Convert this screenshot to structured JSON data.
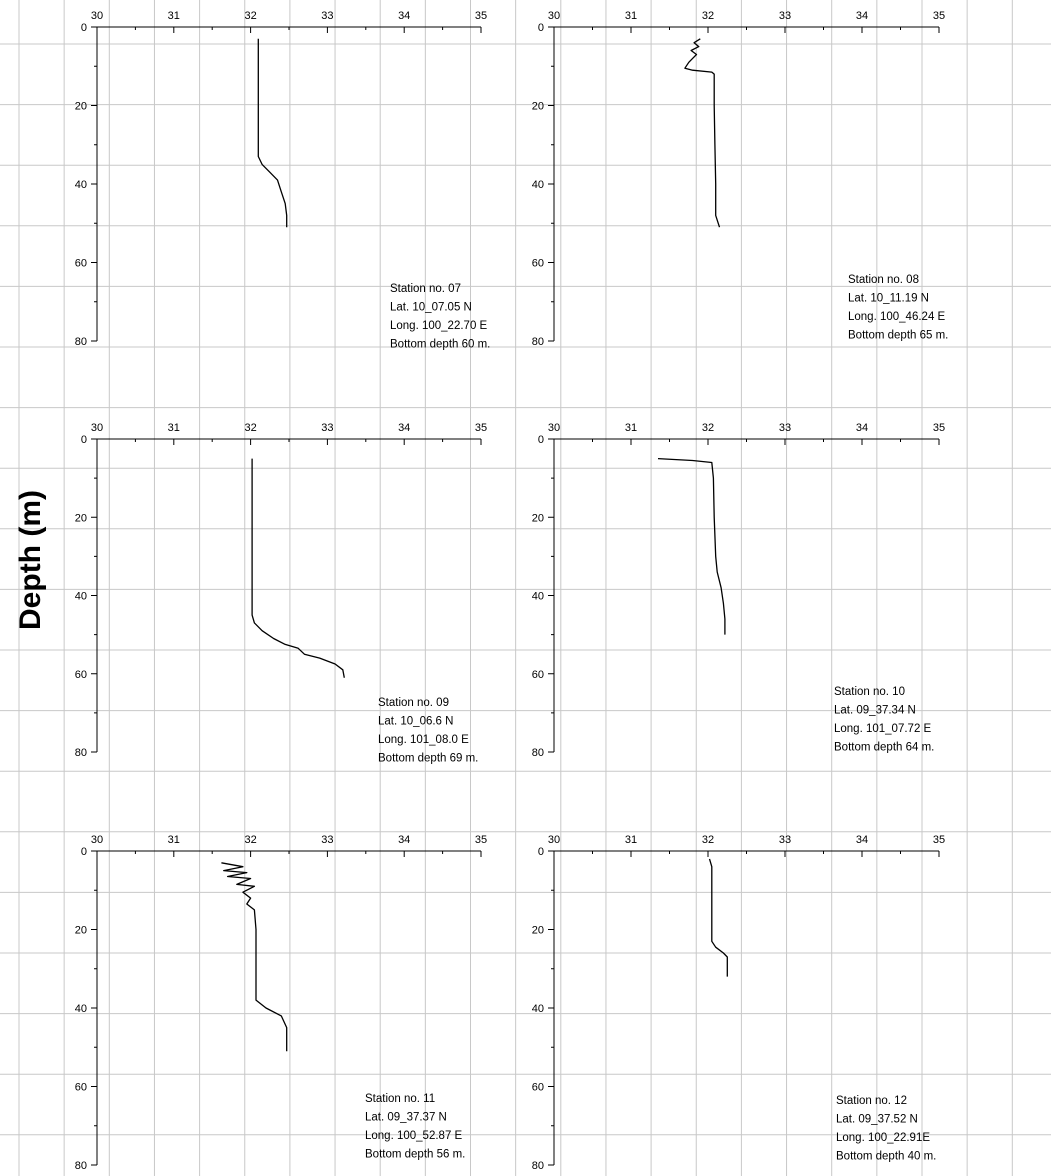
{
  "colors": {
    "background": "#ffffff",
    "grid": "#c8c8c8",
    "axis": "#000000",
    "line": "#000000"
  },
  "chart_data": {
    "type": "line",
    "ylabel": "Depth (m)",
    "grid": true,
    "panels": [
      {
        "station": "Station no. 07",
        "lat": "Lat. 10_07.05 N",
        "long": "Long. 100_22.70 E",
        "bottom": "Bottom depth 60 m.",
        "xlim": [
          30,
          35
        ],
        "ylim": [
          0,
          80
        ],
        "ticks_x": [
          "30",
          "31",
          "32",
          "33",
          "34",
          "35"
        ],
        "ticks_y": [
          "0",
          "20",
          "40",
          "60",
          "80"
        ],
        "points": [
          [
            32.1,
            3
          ],
          [
            32.1,
            10
          ],
          [
            32.1,
            20
          ],
          [
            32.1,
            30
          ],
          [
            32.1,
            33
          ],
          [
            32.15,
            35
          ],
          [
            32.25,
            37
          ],
          [
            32.35,
            39
          ],
          [
            32.4,
            42
          ],
          [
            32.45,
            45
          ],
          [
            32.47,
            48
          ],
          [
            32.47,
            51
          ]
        ]
      },
      {
        "station": "Station no. 08",
        "lat": "Lat. 10_11.19 N",
        "long": "Long. 100_46.24 E",
        "bottom": "Bottom depth 65 m.",
        "xlim": [
          30,
          35
        ],
        "ylim": [
          0,
          80
        ],
        "ticks_x": [
          "30",
          "31",
          "32",
          "33",
          "34",
          "35"
        ],
        "ticks_y": [
          "0",
          "20",
          "40",
          "60",
          "80"
        ],
        "points": [
          [
            31.9,
            3
          ],
          [
            31.82,
            4
          ],
          [
            31.88,
            5
          ],
          [
            31.78,
            6
          ],
          [
            31.85,
            7
          ],
          [
            31.8,
            8
          ],
          [
            31.75,
            9
          ],
          [
            31.7,
            10.5
          ],
          [
            31.8,
            11
          ],
          [
            32.05,
            11.5
          ],
          [
            32.08,
            12
          ],
          [
            32.08,
            20
          ],
          [
            32.09,
            30
          ],
          [
            32.1,
            40
          ],
          [
            32.1,
            48
          ],
          [
            32.15,
            51
          ]
        ]
      },
      {
        "station": "Station no. 09",
        "lat": "Lat. 10_06.6 N",
        "long": "Long. 101_08.0 E",
        "bottom": "Bottom depth 69 m.",
        "xlim": [
          30,
          35
        ],
        "ylim": [
          0,
          80
        ],
        "ticks_x": [
          "30",
          "31",
          "32",
          "33",
          "34",
          "35"
        ],
        "ticks_y": [
          "0",
          "20",
          "40",
          "60",
          "80"
        ],
        "points": [
          [
            32.02,
            5
          ],
          [
            32.02,
            20
          ],
          [
            32.02,
            40
          ],
          [
            32.02,
            45
          ],
          [
            32.05,
            47
          ],
          [
            32.15,
            49
          ],
          [
            32.3,
            51
          ],
          [
            32.45,
            52.5
          ],
          [
            32.62,
            53.5
          ],
          [
            32.7,
            55
          ],
          [
            32.9,
            56
          ],
          [
            33.1,
            57.5
          ],
          [
            33.2,
            59
          ],
          [
            33.22,
            61
          ]
        ]
      },
      {
        "station": "Station no. 10",
        "lat": "Lat. 09_37.34 N",
        "long": "Long. 101_07.72 E",
        "bottom": "Bottom depth 64 m.",
        "xlim": [
          30,
          35
        ],
        "ylim": [
          0,
          80
        ],
        "ticks_x": [
          "30",
          "31",
          "32",
          "33",
          "34",
          "35"
        ],
        "ticks_y": [
          "0",
          "20",
          "40",
          "60",
          "80"
        ],
        "points": [
          [
            31.35,
            5
          ],
          [
            31.8,
            5.5
          ],
          [
            32.05,
            6
          ],
          [
            32.07,
            10
          ],
          [
            32.08,
            20
          ],
          [
            32.1,
            30
          ],
          [
            32.12,
            34
          ],
          [
            32.17,
            38
          ],
          [
            32.2,
            42
          ],
          [
            32.22,
            46
          ],
          [
            32.22,
            50
          ]
        ]
      },
      {
        "station": "Station no. 11",
        "lat": "Lat. 09_37.37 N",
        "long": "Long. 100_52.87 E",
        "bottom": "Bottom depth 56 m.",
        "xlim": [
          30,
          35
        ],
        "ylim": [
          0,
          80
        ],
        "ticks_x": [
          "30",
          "31",
          "32",
          "33",
          "34",
          "35"
        ],
        "ticks_y": [
          "0",
          "20",
          "40",
          "60",
          "80"
        ],
        "points": [
          [
            31.62,
            3
          ],
          [
            31.9,
            4
          ],
          [
            31.65,
            5
          ],
          [
            31.95,
            5.5
          ],
          [
            31.7,
            6.5
          ],
          [
            32.0,
            7
          ],
          [
            31.82,
            8.5
          ],
          [
            32.05,
            9
          ],
          [
            31.9,
            10.5
          ],
          [
            32.0,
            12
          ],
          [
            31.95,
            13.5
          ],
          [
            32.05,
            15
          ],
          [
            32.07,
            20
          ],
          [
            32.07,
            30
          ],
          [
            32.07,
            38
          ],
          [
            32.2,
            40
          ],
          [
            32.4,
            42
          ],
          [
            32.47,
            45
          ],
          [
            32.47,
            51
          ]
        ]
      },
      {
        "station": "Station no. 12",
        "lat": "Lat. 09_37.52 N",
        "long": "Long. 100_22.91E",
        "bottom": "Bottom depth 40 m.",
        "xlim": [
          30,
          35
        ],
        "ylim": [
          0,
          80
        ],
        "ticks_x": [
          "30",
          "31",
          "32",
          "33",
          "34",
          "35"
        ],
        "ticks_y": [
          "0",
          "20",
          "40",
          "60",
          "80"
        ],
        "points": [
          [
            32.02,
            2
          ],
          [
            32.05,
            4
          ],
          [
            32.05,
            10
          ],
          [
            32.05,
            20
          ],
          [
            32.05,
            23
          ],
          [
            32.1,
            24.5
          ],
          [
            32.2,
            26
          ],
          [
            32.25,
            27
          ],
          [
            32.25,
            29
          ],
          [
            32.25,
            32
          ]
        ]
      }
    ]
  }
}
